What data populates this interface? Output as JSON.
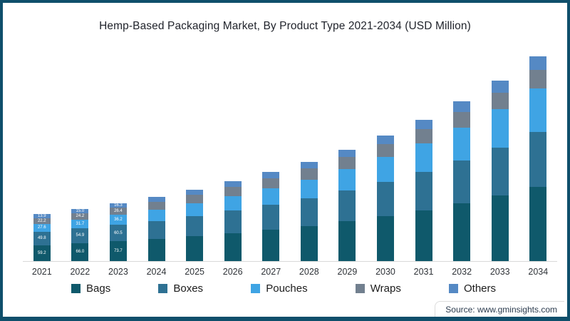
{
  "page": {
    "frame_color": "#0f4f6b",
    "background_color": "#ffffff"
  },
  "chart_data": {
    "type": "bar",
    "stacked": true,
    "title": "Hemp-Based Packaging Market, By Product Type 2021-2034 (USD Million)",
    "xlabel": "",
    "ylabel": "",
    "ylim": [
      0,
      760
    ],
    "grid": false,
    "legend_position": "bottom",
    "categories": [
      "2021",
      "2022",
      "2023",
      "2024",
      "2025",
      "2026",
      "2027",
      "2028",
      "2029",
      "2030",
      "2031",
      "2032",
      "2033",
      "2034"
    ],
    "series": [
      {
        "name": "Bags",
        "color": "#0f596b",
        "values": [
          59.2,
          66.0,
          73.7,
          82.0,
          92.2,
          103.5,
          116.3,
          130.0,
          146.6,
          165.5,
          187.5,
          212.8,
          241.4,
          274.8
        ]
      },
      {
        "name": "Boxes",
        "color": "#2e7193",
        "values": [
          49.8,
          54.9,
          60.5,
          66.6,
          74.1,
          82.3,
          91.6,
          101.2,
          113.0,
          126.2,
          141.4,
          158.9,
          178.2,
          200.8
        ]
      },
      {
        "name": "Pouches",
        "color": "#3fa4e4",
        "values": [
          27.6,
          31.7,
          36.2,
          41.1,
          47.0,
          53.7,
          61.4,
          69.7,
          79.9,
          91.7,
          105.4,
          121.5,
          139.9,
          161.6
        ]
      },
      {
        "name": "Wraps",
        "color": "#72808f",
        "values": [
          22.2,
          24.2,
          26.4,
          28.6,
          31.2,
          33.9,
          37.0,
          40.0,
          43.7,
          47.7,
          52.2,
          57.2,
          62.6,
          68.7
        ]
      },
      {
        "name": "Others",
        "color": "#5589c4",
        "values": [
          13.9,
          15.0,
          16.3,
          17.7,
          19.5,
          21.5,
          23.8,
          26.1,
          28.8,
          31.9,
          35.5,
          39.5,
          44.0,
          49.8
        ]
      }
    ],
    "data_labels_visible_on_categories": [
      "2021",
      "2022",
      "2023"
    ]
  },
  "source": {
    "text": "Source: www.gminsights.com"
  }
}
